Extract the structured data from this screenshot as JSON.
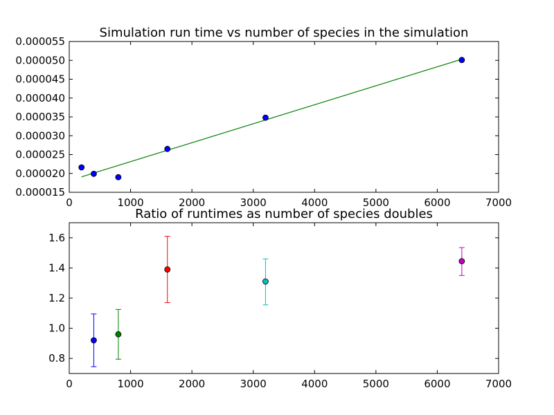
{
  "chart_data": [
    {
      "type": "scatter",
      "title": "Simulation run time vs number of species in the simulation",
      "xlabel": "",
      "ylabel": "",
      "xlim": [
        0,
        7000
      ],
      "ylim": [
        1.5e-05,
        5.5e-05
      ],
      "xticks": [
        "0",
        "1000",
        "2000",
        "3000",
        "4000",
        "5000",
        "6000",
        "7000"
      ],
      "yticks": [
        "0.000015",
        "0.000020",
        "0.000025",
        "0.000030",
        "0.000035",
        "0.000040",
        "0.000045",
        "0.000050",
        "0.000055"
      ],
      "grid": false,
      "colors": {
        "points": "#0000ff",
        "fit_line": "#008000"
      },
      "points": {
        "x": [
          200,
          400,
          800,
          1600,
          3200,
          6400
        ],
        "y": [
          2.16e-05,
          1.99e-05,
          1.9e-05,
          2.65e-05,
          3.48e-05,
          5.01e-05
        ]
      },
      "fit_line": {
        "x": [
          200,
          6400
        ],
        "y": [
          1.91e-05,
          5.03e-05
        ]
      }
    },
    {
      "type": "scatter",
      "title": "Ratio of runtimes as number of species doubles",
      "xlabel": "",
      "ylabel": "",
      "xlim": [
        0,
        7000
      ],
      "ylim": [
        0.7,
        1.7
      ],
      "xticks": [
        "0",
        "1000",
        "2000",
        "3000",
        "4000",
        "5000",
        "6000",
        "7000"
      ],
      "yticks": [
        "0.8",
        "1.0",
        "1.2",
        "1.4",
        "1.6"
      ],
      "grid": false,
      "points": [
        {
          "x": 400,
          "y": 0.92,
          "ylow": 0.745,
          "yhigh": 1.095,
          "color": "#0000ff"
        },
        {
          "x": 800,
          "y": 0.96,
          "ylow": 0.795,
          "yhigh": 1.125,
          "color": "#008000"
        },
        {
          "x": 1600,
          "y": 1.39,
          "ylow": 1.17,
          "yhigh": 1.61,
          "color": "#ff0000"
        },
        {
          "x": 3200,
          "y": 1.31,
          "ylow": 1.155,
          "yhigh": 1.46,
          "color": "#00bfbf"
        },
        {
          "x": 6400,
          "y": 1.445,
          "ylow": 1.35,
          "yhigh": 1.535,
          "color": "#bf00bf"
        }
      ]
    }
  ]
}
